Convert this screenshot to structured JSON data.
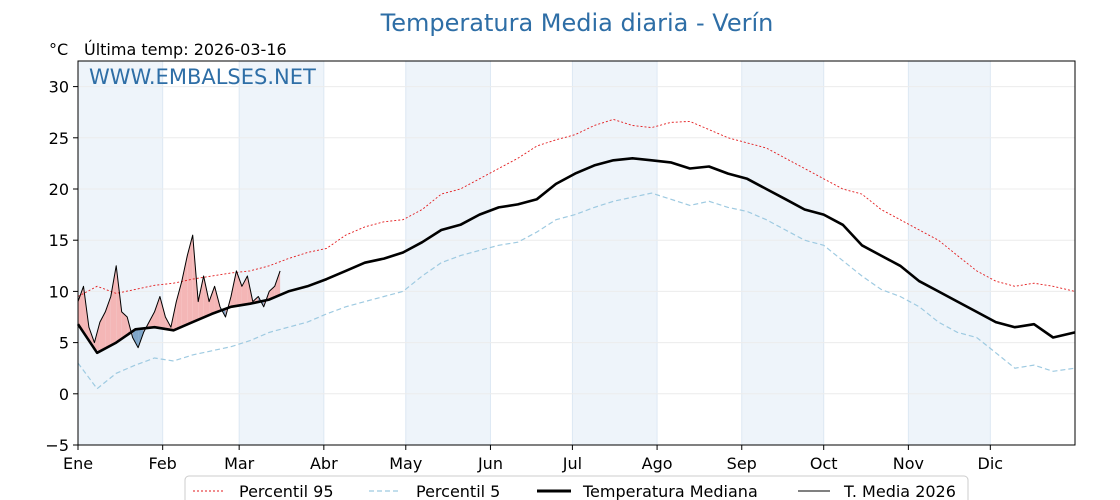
{
  "chart_data": {
    "type": "line",
    "title": "Temperatura Media diaria - Verín",
    "unit_label": "°C",
    "last_temp_label": "Última temp: 2026-03-16",
    "watermark": "WWW.EMBALSES.NET",
    "ylim": [
      -5,
      32.5
    ],
    "yticks": [
      -5,
      0,
      5,
      10,
      15,
      20,
      25,
      30
    ],
    "ytick_labels": [
      "−5",
      "0",
      "5",
      "10",
      "15",
      "20",
      "25",
      "30"
    ],
    "xlim": [
      1,
      366
    ],
    "months": [
      {
        "label": "Ene",
        "start": 1
      },
      {
        "label": "Feb",
        "start": 32
      },
      {
        "label": "Mar",
        "start": 60
      },
      {
        "label": "Abr",
        "start": 91
      },
      {
        "label": "May",
        "start": 121
      },
      {
        "label": "Jun",
        "start": 152
      },
      {
        "label": "Jul",
        "start": 182
      },
      {
        "label": "Ago",
        "start": 213
      },
      {
        "label": "Sep",
        "start": 244
      },
      {
        "label": "Oct",
        "start": 274
      },
      {
        "label": "Nov",
        "start": 305
      },
      {
        "label": "Dic",
        "start": 335
      }
    ],
    "grid": true,
    "legend_placement": "bottom-center",
    "colors": {
      "p95": "#e31a1c",
      "p5": "#9ecae1",
      "median": "#000000",
      "current": "#000000",
      "above_fill": "#f4b6b6",
      "below_fill": "#7fa6c9",
      "band": "#eef4fa"
    },
    "series": [
      {
        "name": "Percentil 95",
        "key": "p95",
        "x": [
          1,
          8,
          15,
          22,
          29,
          36,
          43,
          50,
          57,
          64,
          71,
          78,
          85,
          92,
          99,
          106,
          113,
          120,
          127,
          134,
          141,
          148,
          155,
          162,
          169,
          176,
          183,
          190,
          197,
          204,
          211,
          218,
          225,
          232,
          239,
          246,
          253,
          260,
          267,
          274,
          281,
          288,
          295,
          302,
          309,
          316,
          323,
          330,
          337,
          344,
          351,
          358,
          366
        ],
        "values": [
          9.5,
          10.5,
          9.8,
          10.2,
          10.6,
          10.8,
          11.2,
          11.5,
          11.8,
          12.0,
          12.5,
          13.2,
          13.8,
          14.2,
          15.5,
          16.3,
          16.8,
          17.0,
          18.0,
          19.5,
          20.0,
          21.0,
          22.0,
          23.0,
          24.2,
          24.8,
          25.3,
          26.2,
          26.8,
          26.2,
          26.0,
          26.5,
          26.6,
          25.8,
          25.0,
          24.5,
          24.0,
          23.0,
          22.0,
          21.0,
          20.0,
          19.5,
          18.0,
          17.0,
          16.0,
          15.0,
          13.5,
          12.0,
          11.0,
          10.5,
          10.8,
          10.5,
          10.0
        ]
      },
      {
        "name": "Percentil 5",
        "key": "p5",
        "x": [
          1,
          8,
          15,
          22,
          29,
          36,
          43,
          50,
          57,
          64,
          71,
          78,
          85,
          92,
          99,
          106,
          113,
          120,
          127,
          134,
          141,
          148,
          155,
          162,
          169,
          176,
          183,
          190,
          197,
          204,
          211,
          218,
          225,
          232,
          239,
          246,
          253,
          260,
          267,
          274,
          281,
          288,
          295,
          302,
          309,
          316,
          323,
          330,
          337,
          344,
          351,
          358,
          366
        ],
        "values": [
          3.0,
          0.5,
          2.0,
          2.8,
          3.5,
          3.2,
          3.8,
          4.2,
          4.6,
          5.2,
          6.0,
          6.5,
          7.0,
          7.8,
          8.5,
          9.0,
          9.5,
          10.0,
          11.5,
          12.8,
          13.5,
          14.0,
          14.5,
          14.8,
          15.8,
          17.0,
          17.5,
          18.2,
          18.8,
          19.2,
          19.6,
          19.0,
          18.4,
          18.8,
          18.2,
          17.8,
          17.0,
          16.0,
          15.0,
          14.5,
          13.0,
          11.5,
          10.2,
          9.5,
          8.5,
          7.0,
          6.0,
          5.5,
          4.0,
          2.5,
          2.8,
          2.2,
          2.5
        ]
      },
      {
        "name": "Temperatura Mediana",
        "key": "median",
        "x": [
          1,
          8,
          15,
          22,
          29,
          36,
          43,
          50,
          57,
          64,
          71,
          78,
          85,
          92,
          99,
          106,
          113,
          120,
          127,
          134,
          141,
          148,
          155,
          162,
          169,
          176,
          183,
          190,
          197,
          204,
          211,
          218,
          225,
          232,
          239,
          246,
          253,
          260,
          267,
          274,
          281,
          288,
          295,
          302,
          309,
          316,
          323,
          330,
          337,
          344,
          351,
          358,
          366
        ],
        "values": [
          6.8,
          4.0,
          5.0,
          6.3,
          6.5,
          6.2,
          7.0,
          7.8,
          8.5,
          8.8,
          9.2,
          10.0,
          10.5,
          11.2,
          12.0,
          12.8,
          13.2,
          13.8,
          14.8,
          16.0,
          16.5,
          17.5,
          18.2,
          18.5,
          19.0,
          20.5,
          21.5,
          22.3,
          22.8,
          23.0,
          22.8,
          22.6,
          22.0,
          22.2,
          21.5,
          21.0,
          20.0,
          19.0,
          18.0,
          17.5,
          16.5,
          14.5,
          13.5,
          12.5,
          11.0,
          10.0,
          9.0,
          8.0,
          7.0,
          6.5,
          6.8,
          5.5,
          6.0
        ]
      },
      {
        "name": "T. Media 2026",
        "key": "current",
        "x": [
          1,
          3,
          5,
          7,
          9,
          11,
          13,
          15,
          17,
          19,
          21,
          23,
          25,
          27,
          29,
          31,
          33,
          35,
          37,
          39,
          41,
          43,
          45,
          47,
          49,
          51,
          53,
          55,
          57,
          59,
          61,
          63,
          65,
          67,
          69,
          71,
          73,
          75
        ],
        "values": [
          9.0,
          10.5,
          6.5,
          5.0,
          7.0,
          8.0,
          9.5,
          12.5,
          8.0,
          7.5,
          5.5,
          4.5,
          6.0,
          7.0,
          8.0,
          9.5,
          7.5,
          6.5,
          9.0,
          11.0,
          13.5,
          15.5,
          9.0,
          11.5,
          9.0,
          10.5,
          8.5,
          7.5,
          9.5,
          12.0,
          10.5,
          11.5,
          9.0,
          9.5,
          8.5,
          10.0,
          10.5,
          12.0
        ]
      }
    ],
    "legend": [
      "Percentil 95",
      "Percentil 5",
      "Temperatura Mediana",
      "T. Media 2026"
    ]
  }
}
